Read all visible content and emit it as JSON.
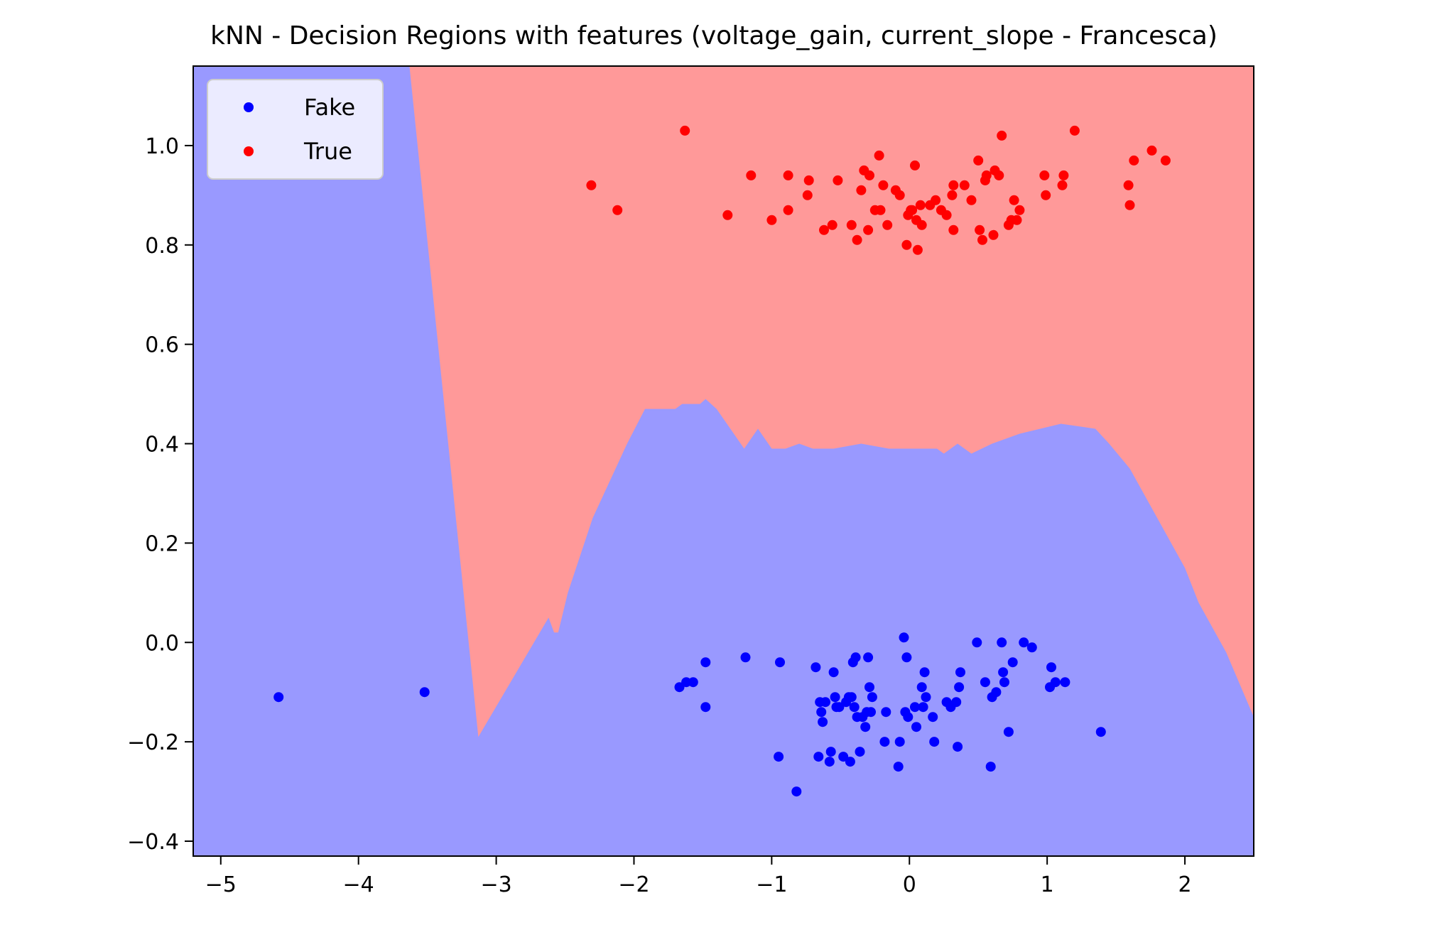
{
  "chart_data": {
    "type": "scatter",
    "title": "kNN - Decision Regions with features (voltage_gain, current_slope - Francesca)",
    "xlabel": "",
    "ylabel": "",
    "xlim": [
      -5.2,
      2.5
    ],
    "ylim": [
      -0.43,
      1.16
    ],
    "x_ticks": [
      -5,
      -4,
      -3,
      -2,
      -1,
      0,
      1,
      2
    ],
    "x_tick_labels": [
      "−5",
      "−4",
      "−3",
      "−2",
      "−1",
      "0",
      "1",
      "2"
    ],
    "y_ticks": [
      -0.4,
      -0.2,
      0.0,
      0.2,
      0.4,
      0.6,
      0.8,
      1.0
    ],
    "y_tick_labels": [
      "−0.4",
      "−0.2",
      "0.0",
      "0.2",
      "0.4",
      "0.6",
      "0.8",
      "1.0"
    ],
    "grid": false,
    "legend_position": "top-left",
    "regions": {
      "fake_color": "#9999ff",
      "true_color": "#ff9999",
      "boundary": [
        [
          -5.2,
          1.16
        ],
        [
          -3.63,
          1.16
        ],
        [
          -3.13,
          -0.19
        ],
        [
          -2.62,
          0.05
        ],
        [
          -2.58,
          0.02
        ],
        [
          -2.55,
          0.02
        ],
        [
          -2.48,
          0.1
        ],
        [
          -2.3,
          0.25
        ],
        [
          -2.05,
          0.4
        ],
        [
          -1.92,
          0.47
        ],
        [
          -1.7,
          0.47
        ],
        [
          -1.65,
          0.48
        ],
        [
          -1.52,
          0.48
        ],
        [
          -1.48,
          0.49
        ],
        [
          -1.4,
          0.47
        ],
        [
          -1.3,
          0.43
        ],
        [
          -1.2,
          0.39
        ],
        [
          -1.1,
          0.43
        ],
        [
          -1.0,
          0.39
        ],
        [
          -0.9,
          0.39
        ],
        [
          -0.8,
          0.4
        ],
        [
          -0.7,
          0.39
        ],
        [
          -0.55,
          0.39
        ],
        [
          -0.35,
          0.4
        ],
        [
          -0.15,
          0.39
        ],
        [
          0.0,
          0.39
        ],
        [
          0.2,
          0.39
        ],
        [
          0.25,
          0.38
        ],
        [
          0.35,
          0.4
        ],
        [
          0.45,
          0.38
        ],
        [
          0.6,
          0.4
        ],
        [
          0.8,
          0.42
        ],
        [
          0.95,
          0.43
        ],
        [
          1.1,
          0.44
        ],
        [
          1.35,
          0.43
        ],
        [
          1.45,
          0.4
        ],
        [
          1.6,
          0.35
        ],
        [
          1.8,
          0.25
        ],
        [
          2.0,
          0.15
        ],
        [
          2.1,
          0.08
        ],
        [
          2.3,
          -0.02
        ],
        [
          2.5,
          -0.15
        ],
        [
          2.5,
          -0.43
        ],
        [
          -5.2,
          -0.43
        ]
      ]
    },
    "series": [
      {
        "name": "Fake",
        "color": "#0000ff",
        "points": [
          [
            -4.58,
            -0.11
          ],
          [
            -3.52,
            -0.1
          ],
          [
            -1.67,
            -0.09
          ],
          [
            -1.62,
            -0.08
          ],
          [
            -1.57,
            -0.08
          ],
          [
            -1.48,
            -0.04
          ],
          [
            -1.48,
            -0.13
          ],
          [
            -1.19,
            -0.03
          ],
          [
            -0.95,
            -0.23
          ],
          [
            -0.94,
            -0.04
          ],
          [
            -0.82,
            -0.3
          ],
          [
            -0.68,
            -0.05
          ],
          [
            -0.66,
            -0.23
          ],
          [
            -0.65,
            -0.12
          ],
          [
            -0.64,
            -0.14
          ],
          [
            -0.63,
            -0.16
          ],
          [
            -0.61,
            -0.12
          ],
          [
            -0.58,
            -0.24
          ],
          [
            -0.57,
            -0.22
          ],
          [
            -0.55,
            -0.06
          ],
          [
            -0.54,
            -0.11
          ],
          [
            -0.53,
            -0.13
          ],
          [
            -0.51,
            -0.13
          ],
          [
            -0.48,
            -0.23
          ],
          [
            -0.46,
            -0.12
          ],
          [
            -0.44,
            -0.11
          ],
          [
            -0.43,
            -0.24
          ],
          [
            -0.42,
            -0.11
          ],
          [
            -0.41,
            -0.04
          ],
          [
            -0.4,
            -0.13
          ],
          [
            -0.39,
            -0.03
          ],
          [
            -0.38,
            -0.15
          ],
          [
            -0.36,
            -0.22
          ],
          [
            -0.34,
            -0.15
          ],
          [
            -0.32,
            -0.17
          ],
          [
            -0.31,
            -0.14
          ],
          [
            -0.3,
            -0.03
          ],
          [
            -0.29,
            -0.09
          ],
          [
            -0.28,
            -0.14
          ],
          [
            -0.27,
            -0.11
          ],
          [
            -0.18,
            -0.2
          ],
          [
            -0.17,
            -0.14
          ],
          [
            -0.08,
            -0.25
          ],
          [
            -0.07,
            -0.2
          ],
          [
            -0.04,
            0.01
          ],
          [
            -0.03,
            -0.14
          ],
          [
            -0.02,
            -0.03
          ],
          [
            -0.01,
            -0.15
          ],
          [
            0.04,
            -0.13
          ],
          [
            0.05,
            -0.17
          ],
          [
            0.09,
            -0.09
          ],
          [
            0.1,
            -0.13
          ],
          [
            0.11,
            -0.06
          ],
          [
            0.12,
            -0.11
          ],
          [
            0.17,
            -0.15
          ],
          [
            0.18,
            -0.2
          ],
          [
            0.27,
            -0.12
          ],
          [
            0.3,
            -0.13
          ],
          [
            0.34,
            -0.12
          ],
          [
            0.35,
            -0.21
          ],
          [
            0.36,
            -0.09
          ],
          [
            0.37,
            -0.06
          ],
          [
            0.49,
            0.0
          ],
          [
            0.55,
            -0.08
          ],
          [
            0.59,
            -0.25
          ],
          [
            0.6,
            -0.11
          ],
          [
            0.63,
            -0.1
          ],
          [
            0.67,
            0.0
          ],
          [
            0.68,
            -0.06
          ],
          [
            0.69,
            -0.08
          ],
          [
            0.72,
            -0.18
          ],
          [
            0.75,
            -0.04
          ],
          [
            0.83,
            0.0
          ],
          [
            0.89,
            -0.01
          ],
          [
            1.02,
            -0.09
          ],
          [
            1.03,
            -0.05
          ],
          [
            1.06,
            -0.08
          ],
          [
            1.13,
            -0.08
          ],
          [
            1.39,
            -0.18
          ]
        ]
      },
      {
        "name": "True",
        "color": "#ff0000",
        "points": [
          [
            -2.31,
            0.92
          ],
          [
            -2.12,
            0.87
          ],
          [
            -1.63,
            1.03
          ],
          [
            -1.32,
            0.86
          ],
          [
            -1.15,
            0.94
          ],
          [
            -1.0,
            0.85
          ],
          [
            -0.88,
            0.87
          ],
          [
            -0.88,
            0.94
          ],
          [
            -0.74,
            0.9
          ],
          [
            -0.73,
            0.93
          ],
          [
            -0.62,
            0.83
          ],
          [
            -0.56,
            0.84
          ],
          [
            -0.52,
            0.93
          ],
          [
            -0.42,
            0.84
          ],
          [
            -0.38,
            0.81
          ],
          [
            -0.35,
            0.91
          ],
          [
            -0.33,
            0.95
          ],
          [
            -0.3,
            0.83
          ],
          [
            -0.29,
            0.94
          ],
          [
            -0.25,
            0.87
          ],
          [
            -0.22,
            0.98
          ],
          [
            -0.21,
            0.87
          ],
          [
            -0.19,
            0.92
          ],
          [
            -0.16,
            0.84
          ],
          [
            -0.1,
            0.91
          ],
          [
            -0.07,
            0.9
          ],
          [
            -0.02,
            0.8
          ],
          [
            -0.01,
            0.86
          ],
          [
            0.01,
            0.87
          ],
          [
            0.02,
            0.87
          ],
          [
            0.04,
            0.96
          ],
          [
            0.05,
            0.85
          ],
          [
            0.06,
            0.79
          ],
          [
            0.08,
            0.88
          ],
          [
            0.09,
            0.84
          ],
          [
            0.15,
            0.88
          ],
          [
            0.19,
            0.89
          ],
          [
            0.23,
            0.87
          ],
          [
            0.27,
            0.86
          ],
          [
            0.31,
            0.9
          ],
          [
            0.32,
            0.83
          ],
          [
            0.32,
            0.92
          ],
          [
            0.4,
            0.92
          ],
          [
            0.45,
            0.89
          ],
          [
            0.5,
            0.97
          ],
          [
            0.51,
            0.83
          ],
          [
            0.53,
            0.81
          ],
          [
            0.55,
            0.93
          ],
          [
            0.56,
            0.94
          ],
          [
            0.61,
            0.82
          ],
          [
            0.62,
            0.95
          ],
          [
            0.65,
            0.94
          ],
          [
            0.67,
            1.02
          ],
          [
            0.72,
            0.84
          ],
          [
            0.74,
            0.85
          ],
          [
            0.76,
            0.89
          ],
          [
            0.78,
            0.85
          ],
          [
            0.8,
            0.87
          ],
          [
            0.98,
            0.94
          ],
          [
            0.99,
            0.9
          ],
          [
            1.11,
            0.92
          ],
          [
            1.12,
            0.94
          ],
          [
            1.2,
            1.03
          ],
          [
            1.59,
            0.92
          ],
          [
            1.6,
            0.88
          ],
          [
            1.63,
            0.97
          ],
          [
            1.76,
            0.99
          ],
          [
            1.86,
            0.97
          ]
        ]
      }
    ]
  }
}
